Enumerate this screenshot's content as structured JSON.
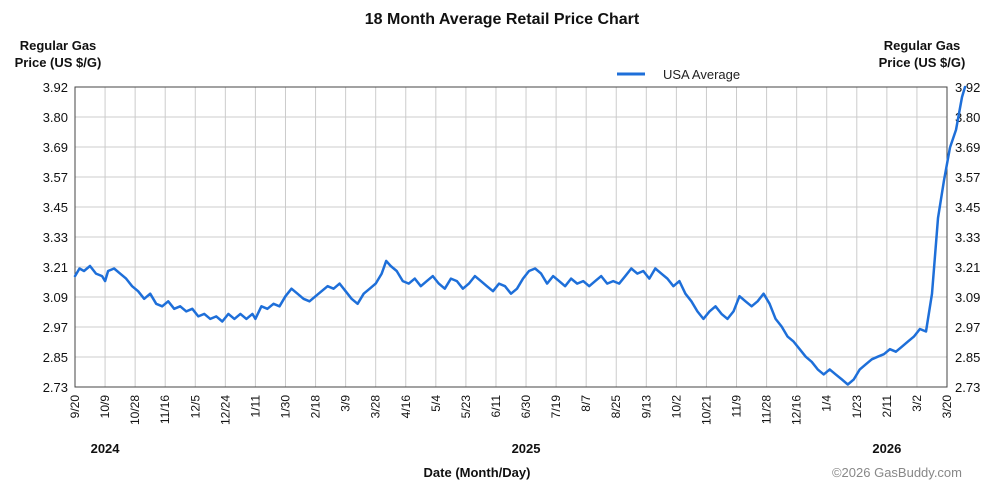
{
  "chart_data": {
    "type": "line",
    "title": "18 Month Average Retail Price Chart",
    "y_axis_left_label": [
      "Regular Gas",
      "Price (US $/G)"
    ],
    "y_axis_right_label": [
      "Regular Gas",
      "Price (US $/G)"
    ],
    "xlabel": "Date (Month/Day)",
    "credit": "©2026 GasBuddy.com",
    "legend": {
      "placement": "top-center",
      "entries": [
        "USA Average"
      ]
    },
    "grid": true,
    "ylim": [
      2.73,
      3.92
    ],
    "y_ticks": [
      "3.92",
      "3.80",
      "3.69",
      "3.57",
      "3.45",
      "3.33",
      "3.21",
      "3.09",
      "2.97",
      "2.85",
      "2.73"
    ],
    "x_ticks": [
      "9/20",
      "10/9",
      "10/28",
      "11/16",
      "12/5",
      "12/24",
      "1/11",
      "1/30",
      "2/18",
      "3/9",
      "3/28",
      "4/16",
      "5/4",
      "5/23",
      "6/11",
      "6/30",
      "7/19",
      "8/7",
      "8/25",
      "9/13",
      "10/2",
      "10/21",
      "11/9",
      "11/28",
      "12/16",
      "1/4",
      "1/23",
      "2/11",
      "3/2",
      "3/20"
    ],
    "year_labels": [
      {
        "label": "2024",
        "at_tick": 1
      },
      {
        "label": "2025",
        "at_tick": 15
      },
      {
        "label": "2026",
        "at_tick": 27
      }
    ],
    "series": [
      {
        "name": "USA Average",
        "color": "#1e6fd9",
        "points": [
          [
            0,
            3.17
          ],
          [
            0.15,
            3.2
          ],
          [
            0.3,
            3.19
          ],
          [
            0.5,
            3.21
          ],
          [
            0.7,
            3.18
          ],
          [
            0.9,
            3.17
          ],
          [
            1.0,
            3.15
          ],
          [
            1.1,
            3.19
          ],
          [
            1.3,
            3.2
          ],
          [
            1.5,
            3.18
          ],
          [
            1.7,
            3.16
          ],
          [
            1.9,
            3.13
          ],
          [
            2.1,
            3.11
          ],
          [
            2.3,
            3.08
          ],
          [
            2.5,
            3.1
          ],
          [
            2.7,
            3.06
          ],
          [
            2.9,
            3.05
          ],
          [
            3.1,
            3.07
          ],
          [
            3.3,
            3.04
          ],
          [
            3.5,
            3.05
          ],
          [
            3.7,
            3.03
          ],
          [
            3.9,
            3.04
          ],
          [
            4.1,
            3.01
          ],
          [
            4.3,
            3.02
          ],
          [
            4.5,
            3.0
          ],
          [
            4.7,
            3.01
          ],
          [
            4.9,
            2.99
          ],
          [
            5.1,
            3.02
          ],
          [
            5.3,
            3.0
          ],
          [
            5.5,
            3.02
          ],
          [
            5.7,
            3.0
          ],
          [
            5.9,
            3.02
          ],
          [
            6.0,
            3.0
          ],
          [
            6.2,
            3.05
          ],
          [
            6.4,
            3.04
          ],
          [
            6.6,
            3.06
          ],
          [
            6.8,
            3.05
          ],
          [
            7.0,
            3.09
          ],
          [
            7.2,
            3.12
          ],
          [
            7.4,
            3.1
          ],
          [
            7.6,
            3.08
          ],
          [
            7.8,
            3.07
          ],
          [
            8.0,
            3.09
          ],
          [
            8.2,
            3.11
          ],
          [
            8.4,
            3.13
          ],
          [
            8.6,
            3.12
          ],
          [
            8.8,
            3.14
          ],
          [
            9.0,
            3.11
          ],
          [
            9.2,
            3.08
          ],
          [
            9.4,
            3.06
          ],
          [
            9.6,
            3.1
          ],
          [
            9.8,
            3.12
          ],
          [
            10.0,
            3.14
          ],
          [
            10.2,
            3.18
          ],
          [
            10.35,
            3.23
          ],
          [
            10.5,
            3.21
          ],
          [
            10.7,
            3.19
          ],
          [
            10.9,
            3.15
          ],
          [
            11.1,
            3.14
          ],
          [
            11.3,
            3.16
          ],
          [
            11.5,
            3.13
          ],
          [
            11.7,
            3.15
          ],
          [
            11.9,
            3.17
          ],
          [
            12.1,
            3.14
          ],
          [
            12.3,
            3.12
          ],
          [
            12.5,
            3.16
          ],
          [
            12.7,
            3.15
          ],
          [
            12.9,
            3.12
          ],
          [
            13.1,
            3.14
          ],
          [
            13.3,
            3.17
          ],
          [
            13.5,
            3.15
          ],
          [
            13.7,
            3.13
          ],
          [
            13.9,
            3.11
          ],
          [
            14.1,
            3.14
          ],
          [
            14.3,
            3.13
          ],
          [
            14.5,
            3.1
          ],
          [
            14.7,
            3.12
          ],
          [
            14.9,
            3.16
          ],
          [
            15.1,
            3.19
          ],
          [
            15.3,
            3.2
          ],
          [
            15.5,
            3.18
          ],
          [
            15.7,
            3.14
          ],
          [
            15.9,
            3.17
          ],
          [
            16.1,
            3.15
          ],
          [
            16.3,
            3.13
          ],
          [
            16.5,
            3.16
          ],
          [
            16.7,
            3.14
          ],
          [
            16.9,
            3.15
          ],
          [
            17.1,
            3.13
          ],
          [
            17.3,
            3.15
          ],
          [
            17.5,
            3.17
          ],
          [
            17.7,
            3.14
          ],
          [
            17.9,
            3.15
          ],
          [
            18.1,
            3.14
          ],
          [
            18.3,
            3.17
          ],
          [
            18.5,
            3.2
          ],
          [
            18.7,
            3.18
          ],
          [
            18.9,
            3.19
          ],
          [
            19.1,
            3.16
          ],
          [
            19.3,
            3.2
          ],
          [
            19.5,
            3.18
          ],
          [
            19.7,
            3.16
          ],
          [
            19.9,
            3.13
          ],
          [
            20.1,
            3.15
          ],
          [
            20.3,
            3.1
          ],
          [
            20.5,
            3.07
          ],
          [
            20.7,
            3.03
          ],
          [
            20.9,
            3.0
          ],
          [
            21.1,
            3.03
          ],
          [
            21.3,
            3.05
          ],
          [
            21.5,
            3.02
          ],
          [
            21.7,
            3.0
          ],
          [
            21.9,
            3.03
          ],
          [
            22.1,
            3.09
          ],
          [
            22.3,
            3.07
          ],
          [
            22.5,
            3.05
          ],
          [
            22.7,
            3.07
          ],
          [
            22.9,
            3.1
          ],
          [
            23.1,
            3.06
          ],
          [
            23.3,
            3.0
          ],
          [
            23.5,
            2.97
          ],
          [
            23.7,
            2.93
          ],
          [
            23.9,
            2.91
          ],
          [
            24.1,
            2.88
          ],
          [
            24.3,
            2.85
          ],
          [
            24.5,
            2.83
          ],
          [
            24.7,
            2.8
          ],
          [
            24.9,
            2.78
          ],
          [
            25.1,
            2.8
          ],
          [
            25.3,
            2.78
          ],
          [
            25.5,
            2.76
          ],
          [
            25.7,
            2.74
          ],
          [
            25.9,
            2.76
          ],
          [
            26.1,
            2.8
          ],
          [
            26.3,
            2.82
          ],
          [
            26.5,
            2.84
          ],
          [
            26.7,
            2.85
          ],
          [
            26.9,
            2.86
          ],
          [
            27.1,
            2.88
          ],
          [
            27.3,
            2.87
          ],
          [
            27.5,
            2.89
          ],
          [
            27.7,
            2.91
          ],
          [
            27.9,
            2.93
          ],
          [
            28.1,
            2.96
          ],
          [
            28.3,
            2.95
          ],
          [
            28.5,
            3.1
          ],
          [
            28.7,
            3.4
          ],
          [
            28.9,
            3.55
          ],
          [
            29.1,
            3.68
          ],
          [
            29.3,
            3.75
          ],
          [
            29.5,
            3.88
          ],
          [
            29.6,
            3.92
          ]
        ]
      }
    ]
  }
}
